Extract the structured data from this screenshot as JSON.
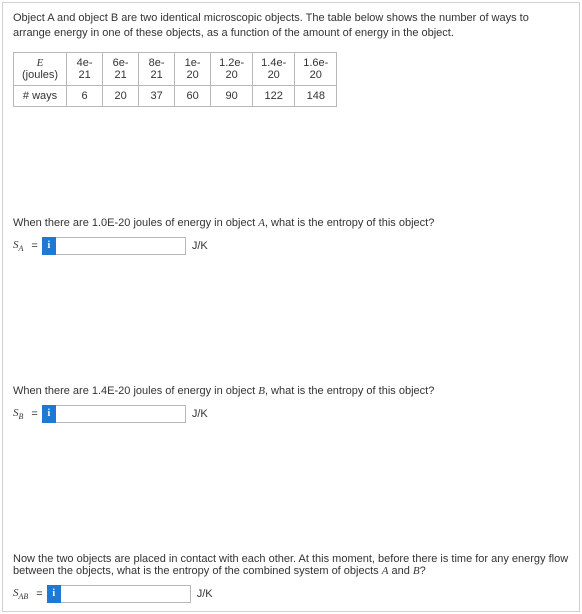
{
  "intro": "Object A and object B are two identical microscopic objects. The table below shows the number of ways to arrange energy in one of these objects, as a function of the amount of energy in the object.",
  "table": {
    "row1_label_line1": "E",
    "row1_label_line2": "(joules)",
    "row2_label": "# ways",
    "cols": [
      {
        "e1": "4e-",
        "e2": "21",
        "w": "6"
      },
      {
        "e1": "6e-",
        "e2": "21",
        "w": "20"
      },
      {
        "e1": "8e-",
        "e2": "21",
        "w": "37"
      },
      {
        "e1": "1e-",
        "e2": "20",
        "w": "60"
      },
      {
        "e1": "1.2e-",
        "e2": "20",
        "w": "90"
      },
      {
        "e1": "1.4e-",
        "e2": "20",
        "w": "122"
      },
      {
        "e1": "1.6e-",
        "e2": "20",
        "w": "148"
      }
    ]
  },
  "q1": {
    "text_pre": "When there are 1.0E-20 joules of energy in object ",
    "obj": "A",
    "text_post": ", what is the entropy of this object?",
    "var": "S",
    "sub": "A",
    "eq": "=",
    "badge": "i",
    "unit": "J/K"
  },
  "q2": {
    "text_pre": "When there are 1.4E-20 joules of energy in object ",
    "obj": "B",
    "text_post": ", what is the entropy of this object?",
    "var": "S",
    "sub": "B",
    "eq": "=",
    "badge": "i",
    "unit": "J/K"
  },
  "q3": {
    "text_line1": "Now the two objects are placed in contact with each other. At this moment, before there is time for any energy flow between the objects, what is the entropy of the combined system of objects ",
    "objA": "A",
    "and": " and ",
    "objB": "B",
    "qmark": "?",
    "var": "S",
    "sub": "AB",
    "eq": "=",
    "badge": "i",
    "unit": "J/K"
  },
  "style": {
    "badge_bg": "#1f78d1",
    "border": "#b8b8b8",
    "text": "#333333"
  }
}
